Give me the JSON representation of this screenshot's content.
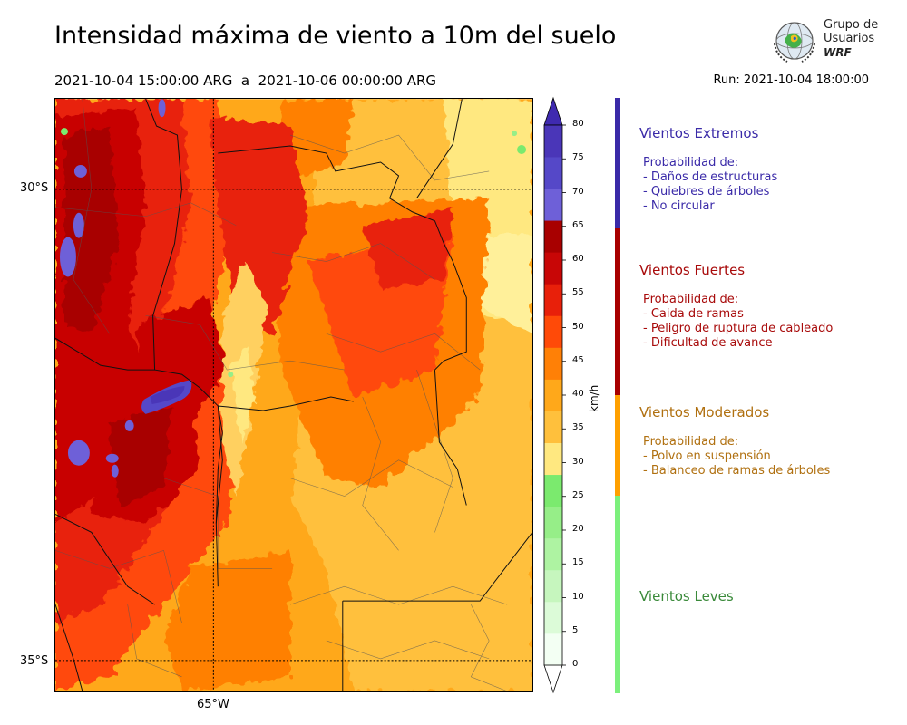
{
  "header": {
    "title": "Intensidad máxima de viento a 10m del suelo",
    "period": "2021-10-04 15:00:00 ARG  a  2021-10-06 00:00:00 ARG",
    "run": "Run: 2021-10-04 18:00:00"
  },
  "logo": {
    "line1": "Grupo de",
    "line2": "Usuarios",
    "line3": "WRF"
  },
  "map": {
    "lat_labels": [
      "30°S",
      "35°S"
    ],
    "lon_labels": [
      "65°W"
    ]
  },
  "colorbar": {
    "unit": "km/h",
    "ticks": [
      "0",
      "5",
      "10",
      "15",
      "20",
      "25",
      "30",
      "35",
      "40",
      "45",
      "50",
      "55",
      "60",
      "65",
      "70",
      "75",
      "80"
    ],
    "colors": [
      "#f3fff3",
      "#dcfbd8",
      "#c6f6be",
      "#aef3a2",
      "#96ee88",
      "#7bea6e",
      "#ffe880",
      "#ffc03c",
      "#ffa81a",
      "#ff8006",
      "#ff4a08",
      "#e8200a",
      "#c80606",
      "#a80000",
      "#6e60d8",
      "#5548c8",
      "#4a36b8"
    ],
    "extend_max_color": "#3f2ab0"
  },
  "categories": [
    {
      "title": "Vientos Extremos",
      "color": "#3a2aa8",
      "bar_color": "#3a2aa8",
      "items": [
        "Probabilidad de:",
        "- Daños de estructuras",
        "- Quiebres de árboles",
        "- No circular"
      ]
    },
    {
      "title": "Vientos Fuertes",
      "color": "#a80a0a",
      "bar_color": "#a80000",
      "items": [
        "Probabilidad de:",
        "- Caida de ramas",
        "- Peligro de ruptura de cableado",
        "- Dificultad de avance"
      ]
    },
    {
      "title": "Vientos Moderados",
      "color": "#b07010",
      "bar_color": "#ffa000",
      "items": [
        "Probabilidad de:",
        "- Polvo en suspensión",
        "- Balanceo de ramas de árboles"
      ]
    },
    {
      "title": "Vientos Leves",
      "color": "#3a8a3a",
      "bar_color": "#7cf07c",
      "items": []
    }
  ]
}
